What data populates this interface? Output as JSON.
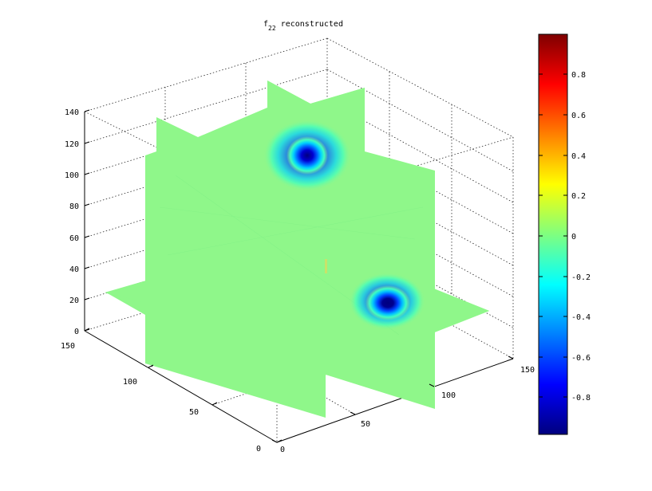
{
  "chart_data": {
    "type": "slice-volume",
    "title": {
      "base": "f",
      "subscript": "22",
      "suffix": " reconstructed"
    },
    "z_axis": {
      "ticks": [
        "0",
        "20",
        "40",
        "60",
        "80",
        "100",
        "120",
        "140"
      ],
      "range": [
        0,
        140
      ]
    },
    "x_axis": {
      "ticks": [
        "0",
        "50",
        "100",
        "150"
      ],
      "range": [
        0,
        150
      ]
    },
    "y_axis": {
      "ticks": [
        "0",
        "50",
        "100",
        "150"
      ],
      "range": [
        0,
        150
      ]
    },
    "grid": true,
    "colorbar": {
      "colormap": "jet",
      "range": [
        -1,
        1
      ],
      "ticks": [
        "0.8",
        "0.6",
        "0.4",
        "0.2",
        "0",
        "-0.2",
        "-0.4",
        "-0.6",
        "-0.8"
      ]
    },
    "slice_background_value": 0,
    "features": [
      {
        "name": "upper-blob",
        "min_value": -1.0
      },
      {
        "name": "lower-blob",
        "min_value": -1.0
      }
    ],
    "colors": {
      "slice_fill": "#8ff78a",
      "blob_core": "#00007f",
      "background": "#ffffff"
    }
  }
}
